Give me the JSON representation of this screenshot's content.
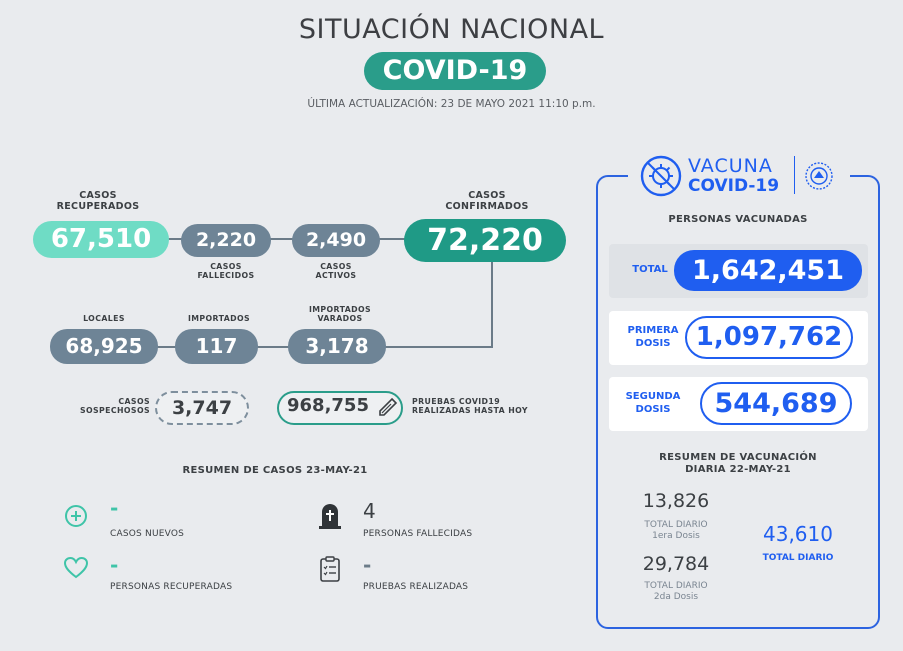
{
  "header": {
    "title": "SITUACIÓN NACIONAL",
    "badge": "COVID-19",
    "updated": "ÚLTIMA ACTUALIZACIÓN: 23 DE MAYO 2021 11:10 p.m."
  },
  "cases": {
    "recovered": {
      "label_line1": "CASOS",
      "label_line2": "RECUPERADOS",
      "value": "67,510"
    },
    "deaths": {
      "label_line1": "CASOS",
      "label_line2": "FALLECIDOS",
      "value": "2,220"
    },
    "active": {
      "label_line1": "CASOS",
      "label_line2": "ACTIVOS",
      "value": "2,490"
    },
    "confirmed": {
      "label_line1": "CASOS",
      "label_line2": "CONFIRMADOS",
      "value": "72,220"
    },
    "local": {
      "label": "LOCALES",
      "value": "68,925"
    },
    "imported": {
      "label": "IMPORTADOS",
      "value": "117"
    },
    "stranded": {
      "label_line1": "IMPORTADOS",
      "label_line2": "VARADOS",
      "value": "3,178"
    },
    "suspected": {
      "label_line1": "CASOS",
      "label_line2": "SOSPECHOSOS",
      "value": "3,747"
    },
    "tests": {
      "label_line1": "PRUEBAS COVID19",
      "label_line2": "REALIZADAS HASTA HOY",
      "value": "968,755"
    }
  },
  "summary": {
    "title": "RESUMEN DE CASOS 23-MAY-21",
    "new_cases": {
      "value": "-",
      "label": "CASOS NUEVOS"
    },
    "recovered": {
      "value": "-",
      "label": "PERSONAS RECUPERADAS"
    },
    "deaths": {
      "value": "4",
      "label": "PERSONAS FALLECIDAS"
    },
    "tests": {
      "value": "-",
      "label": "PRUEBAS REALIZADAS"
    }
  },
  "vaccine": {
    "logo_line1": "VACUNA",
    "logo_line2": "COVID-19",
    "section_title": "PERSONAS VACUNADAS",
    "total": {
      "label": "TOTAL",
      "value": "1,642,451"
    },
    "first": {
      "label_line1": "PRIMERA",
      "label_line2": "DOSIS",
      "value": "1,097,762"
    },
    "second": {
      "label_line1": "SEGUNDA",
      "label_line2": "DOSIS",
      "value": "544,689"
    },
    "daily_title_line1": "RESUMEN DE VACUNACIÓN",
    "daily_title_line2": "DIARIA 22-MAY-21",
    "daily_first": {
      "value": "13,826",
      "label_line1": "TOTAL DIARIO",
      "label_line2": "1era Dosis"
    },
    "daily_second": {
      "value": "29,784",
      "label_line1": "TOTAL DIARIO",
      "label_line2": "2da Dosis"
    },
    "daily_total": {
      "value": "43,610",
      "label": "TOTAL DIARIO"
    }
  },
  "colors": {
    "teal": "#1f9a86",
    "mint": "#6fdcc5",
    "slate": "#6e8496",
    "blue": "#1f5ef0"
  }
}
